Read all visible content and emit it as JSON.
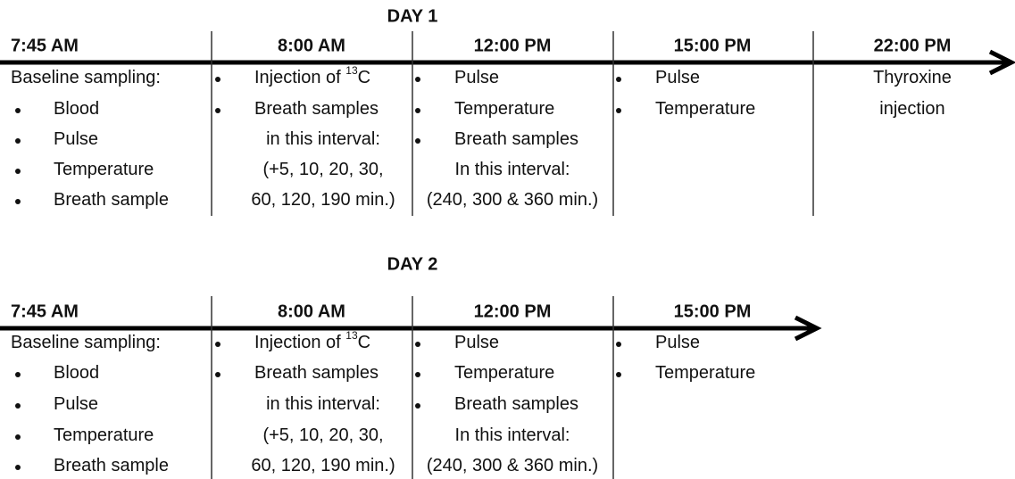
{
  "days": [
    {
      "title": "DAY 1",
      "columns": [
        {
          "time": "7:45 AM",
          "lines": [
            {
              "text": "Baseline sampling:"
            },
            {
              "bullet": true,
              "text": "Blood"
            },
            {
              "bullet": true,
              "text": "Pulse"
            },
            {
              "bullet": true,
              "text": "Temperature"
            },
            {
              "bullet": true,
              "text": "Breath sample"
            }
          ]
        },
        {
          "time": "8:00 AM",
          "lines": [
            {
              "bullet": true,
              "text": "Injection of ",
              "sup": "13",
              "tail": "C"
            },
            {
              "bullet": true,
              "text": "Breath samples"
            },
            {
              "text": "in this interval:"
            },
            {
              "text": "(+5, 10, 20, 30,"
            },
            {
              "text": "60, 120, 190 min.)"
            }
          ]
        },
        {
          "time": "12:00 PM",
          "lines": [
            {
              "bullet": true,
              "text": "Pulse"
            },
            {
              "bullet": true,
              "text": "Temperature"
            },
            {
              "bullet": true,
              "text": "Breath samples"
            },
            {
              "text": "In this interval:"
            },
            {
              "text": "(240, 300 & 360 min.)"
            }
          ]
        },
        {
          "time": "15:00 PM",
          "lines": [
            {
              "bullet": true,
              "text": "Pulse"
            },
            {
              "bullet": true,
              "text": "Temperature"
            }
          ]
        },
        {
          "time": "22:00 PM",
          "lines": [
            {
              "text": "Thyroxine"
            },
            {
              "text": "injection"
            }
          ]
        }
      ]
    },
    {
      "title": "DAY 2",
      "columns": [
        {
          "time": "7:45 AM",
          "lines": [
            {
              "text": "Baseline sampling:"
            },
            {
              "bullet": true,
              "text": "Blood"
            },
            {
              "bullet": true,
              "text": "Pulse"
            },
            {
              "bullet": true,
              "text": "Temperature"
            },
            {
              "bullet": true,
              "text": "Breath sample"
            }
          ]
        },
        {
          "time": "8:00 AM",
          "lines": [
            {
              "bullet": true,
              "text": "Injection of ",
              "sup": "13",
              "tail": "C"
            },
            {
              "bullet": true,
              "text": "Breath samples"
            },
            {
              "text": "in this interval:"
            },
            {
              "text": "(+5, 10, 20, 30,"
            },
            {
              "text": "60, 120, 190 min.)"
            }
          ]
        },
        {
          "time": "12:00 PM",
          "lines": [
            {
              "bullet": true,
              "text": "Pulse"
            },
            {
              "bullet": true,
              "text": "Temperature"
            },
            {
              "bullet": true,
              "text": "Breath samples"
            },
            {
              "text": "In this interval:"
            },
            {
              "text": "(240, 300 & 360 min.)"
            }
          ]
        },
        {
          "time": "15:00 PM",
          "lines": [
            {
              "bullet": true,
              "text": "Pulse"
            },
            {
              "bullet": true,
              "text": "Temperature"
            }
          ]
        }
      ]
    }
  ]
}
